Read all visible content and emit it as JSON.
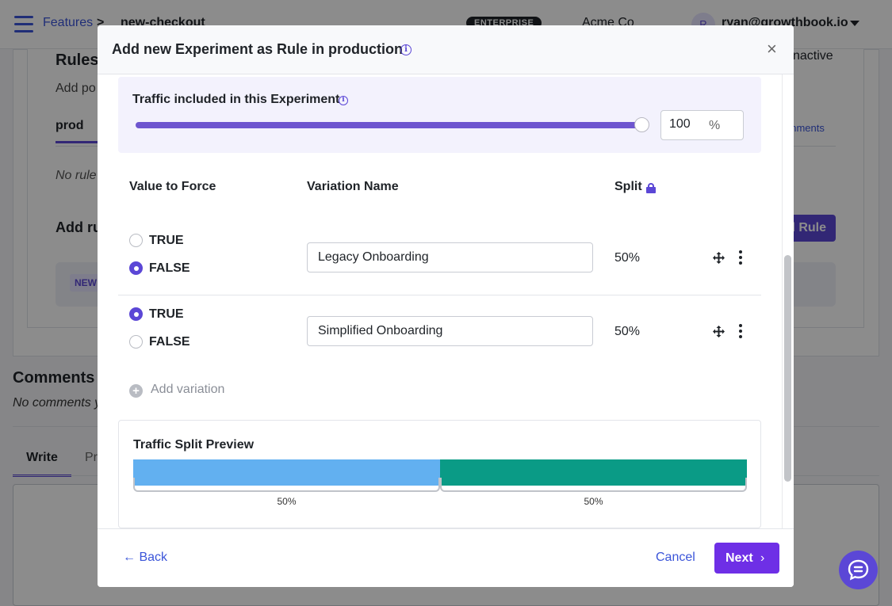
{
  "background": {
    "breadcrumb": {
      "features": "Features",
      "separator": ">",
      "current": "new-checkout"
    },
    "enterprise_badge": "ENTERPRISE",
    "org": "Acme Co",
    "avatar_letter": "R",
    "user_email": "ryan@growthbook.io",
    "rules_title": "Rules",
    "rules_desc": "Add po",
    "inactive": "nactive",
    "tab_production": "prod",
    "environments_link": "onments",
    "no_rules": "No rule",
    "add_rule_heading": "Add ru",
    "add_rule_button": "l Rule",
    "new_badge": "NEW",
    "comments_title": "Comments",
    "no_comments": "No comments y",
    "tab_write": "Write",
    "tab_preview": "Pr"
  },
  "modal": {
    "title": "Add new Experiment as Rule in production",
    "close": "×",
    "traffic": {
      "label": "Traffic included in this Experiment",
      "value": "100",
      "unit": "%",
      "fraction": 1.0
    },
    "columns": {
      "value_to_force": "Value to Force",
      "variation_name": "Variation Name",
      "split": "Split"
    },
    "variations": [
      {
        "options": [
          {
            "label": "TRUE",
            "checked": false
          },
          {
            "label": "FALSE",
            "checked": true
          }
        ],
        "name": "Legacy Onboarding",
        "split": "50%"
      },
      {
        "options": [
          {
            "label": "TRUE",
            "checked": true
          },
          {
            "label": "FALSE",
            "checked": false
          }
        ],
        "name": "Simplified Onboarding",
        "split": "50%"
      }
    ],
    "add_variation": "Add variation",
    "preview": {
      "title": "Traffic Split Preview",
      "segments": [
        {
          "value": 50,
          "label": "50%",
          "color": "#62b0f0"
        },
        {
          "value": 50,
          "label": "50%",
          "color": "#0a9b86"
        }
      ]
    },
    "footer": {
      "back": "← Back",
      "cancel": "Cancel",
      "next": "Next",
      "next_chevron": "›"
    }
  },
  "colors": {
    "accent": "#5b47d6",
    "slider": "#6e56cf",
    "next_button": "#6e2fe6",
    "link": "#3b55d9"
  }
}
